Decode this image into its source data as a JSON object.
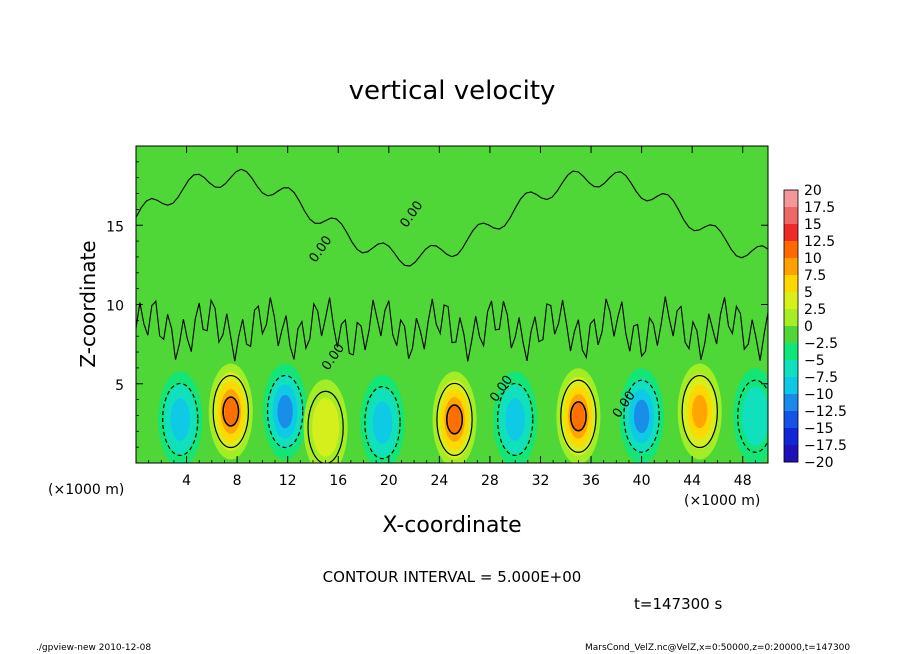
{
  "chart_data": {
    "type": "heatmap",
    "title": "vertical velocity",
    "xlabel": "X-coordinate",
    "ylabel": "Z-coordinate",
    "x_unit_label": "(×1000 m)",
    "y_unit_label": "(×1000 m)",
    "xlim": [
      0,
      50
    ],
    "ylim": [
      0,
      20
    ],
    "x_ticks": [
      "4",
      "8",
      "12",
      "16",
      "20",
      "24",
      "28",
      "32",
      "36",
      "40",
      "44",
      "48"
    ],
    "x_tick_values": [
      4,
      8,
      12,
      16,
      20,
      24,
      28,
      32,
      36,
      40,
      44,
      48
    ],
    "y_ticks": [
      "5",
      "10",
      "15"
    ],
    "y_tick_values": [
      5,
      10,
      15
    ],
    "colorbar_labels": [
      "20",
      "17.5",
      "15",
      "12.5",
      "10",
      "7.5",
      "5",
      "2.5",
      "0",
      "−2.5",
      "−5",
      "−7.5",
      "−10",
      "−12.5",
      "−15",
      "−17.5",
      "−20"
    ],
    "colorbar_colors": [
      "#f29898",
      "#ee6666",
      "#ee2a2a",
      "#ff6a00",
      "#ffa200",
      "#ffd700",
      "#d7ef1b",
      "#a8ee24",
      "#4fd637",
      "#10e67a",
      "#10e0c0",
      "#10c8e6",
      "#1a8ae8",
      "#1553e6",
      "#1027d6",
      "#2010b8",
      "#6a14c8"
    ],
    "contour_label": "0.00",
    "cells": [
      {
        "x": 3.5,
        "z": 3.0,
        "w": -8
      },
      {
        "x": 7.5,
        "z": 3.5,
        "w": 12
      },
      {
        "x": 11.8,
        "z": 3.5,
        "w": -9
      },
      {
        "x": 15.0,
        "z": 2.5,
        "w": 6
      },
      {
        "x": 19.5,
        "z": 2.8,
        "w": -8
      },
      {
        "x": 25.2,
        "z": 3.0,
        "w": 12
      },
      {
        "x": 30.0,
        "z": 3.0,
        "w": -7
      },
      {
        "x": 35.0,
        "z": 3.2,
        "w": 13
      },
      {
        "x": 40.0,
        "z": 3.2,
        "w": -9
      },
      {
        "x": 44.6,
        "z": 3.5,
        "w": 9
      },
      {
        "x": 49.0,
        "z": 3.2,
        "w": -6
      }
    ]
  },
  "annotations": {
    "contour_interval": "CONTOUR INTERVAL = 5.000E+00",
    "time": "t=147300 s",
    "footer_left": "./gpview-new   2010-12-08",
    "footer_right": "MarsCond_VelZ.nc@VelZ,x=0:50000,z=0:20000,t=147300"
  }
}
